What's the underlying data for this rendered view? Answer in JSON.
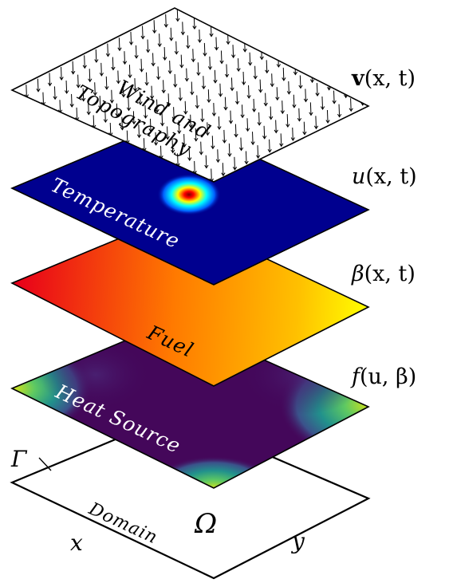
{
  "layers": {
    "wind": {
      "label_line1": "Wind and",
      "label_line2": "Topography",
      "equation_symbol": "v",
      "equation_args": "(x, t)"
    },
    "temperature": {
      "label": "Temperature",
      "equation_symbol": "u",
      "equation_args": "(x, t)"
    },
    "fuel": {
      "label": "Fuel",
      "equation_symbol": "β",
      "equation_args": "(x, t)"
    },
    "heat": {
      "label": "Heat Source",
      "equation_symbol": "f",
      "equation_args": "(u, β)"
    },
    "domain": {
      "label": "Domain",
      "region_symbol": "Ω",
      "boundary_symbol": "Γ",
      "x_axis": "x",
      "y_axis": "y"
    }
  },
  "colors": {
    "temperature_bg": "#00008f",
    "fuel_start": "#ff0000",
    "fuel_mid": "#ff8c00",
    "fuel_end": "#ffff00",
    "heat_bg": "#44075a",
    "heat_corner": "#5ec962",
    "outline": "#000000"
  }
}
